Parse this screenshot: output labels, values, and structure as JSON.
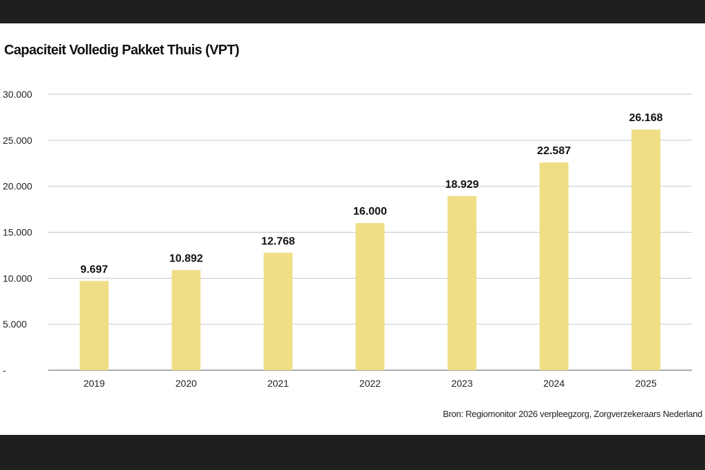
{
  "title": "Capaciteit Volledig Pakket Thuis (VPT)",
  "source": "Bron: Regiomonitor 2026 verpleegzorg, Zorgverzekeraars Nederland",
  "colors": {
    "bar": "#f0de87",
    "grid": "#c7c7c7",
    "background": "#ffffff",
    "frame": "#1d201d"
  },
  "chart_data": {
    "type": "bar",
    "categories": [
      "2019",
      "2020",
      "2021",
      "2022",
      "2023",
      "2024",
      "2025"
    ],
    "values": [
      9697,
      10892,
      12768,
      16000,
      18929,
      22587,
      26168
    ],
    "value_labels": [
      "9.697",
      "10.892",
      "12.768",
      "16.000",
      "18.929",
      "22.587",
      "26.168"
    ],
    "title": "Capaciteit Volledig Pakket Thuis (VPT)",
    "xlabel": "",
    "ylabel": "",
    "ylim": [
      0,
      30000
    ],
    "yticks": [
      0,
      5000,
      10000,
      15000,
      20000,
      25000,
      30000
    ],
    "ytick_labels": [
      "-",
      "5.000",
      "10.000",
      "15.000",
      "20.000",
      "25.000",
      "30.000"
    ],
    "grid": true,
    "legend": "none"
  }
}
